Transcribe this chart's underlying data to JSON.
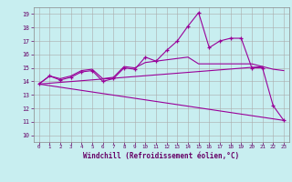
{
  "xlabel": "Windchill (Refroidissement éolien,°C)",
  "bg_color": "#c8eef0",
  "line_color": "#990099",
  "grid_color": "#aaaaaa",
  "x_ticks": [
    0,
    1,
    2,
    3,
    4,
    5,
    6,
    7,
    8,
    9,
    10,
    11,
    12,
    13,
    14,
    15,
    16,
    17,
    18,
    19,
    20,
    21,
    22,
    23
  ],
  "y_ticks": [
    10,
    11,
    12,
    13,
    14,
    15,
    16,
    17,
    18,
    19
  ],
  "xlim": [
    -0.5,
    23.5
  ],
  "ylim": [
    9.5,
    19.5
  ],
  "series1_x": [
    0,
    1,
    2,
    3,
    4,
    5,
    6,
    7,
    8,
    9,
    10,
    11,
    12,
    13,
    14,
    15,
    16,
    17,
    18,
    19,
    20,
    21,
    22,
    23
  ],
  "series1_y": [
    13.8,
    14.4,
    14.1,
    14.3,
    14.7,
    14.8,
    14.0,
    14.2,
    15.0,
    14.9,
    15.8,
    15.5,
    16.3,
    17.0,
    18.1,
    19.1,
    16.5,
    17.0,
    17.2,
    17.2,
    15.0,
    15.0,
    12.2,
    11.1
  ],
  "series2_x": [
    0,
    1,
    2,
    3,
    4,
    5,
    6,
    7,
    8,
    9,
    10,
    11,
    12,
    13,
    14,
    15,
    16,
    17,
    18,
    19,
    20,
    21,
    22,
    23
  ],
  "series2_y": [
    13.8,
    14.4,
    14.2,
    14.4,
    14.8,
    14.9,
    14.2,
    14.3,
    15.1,
    15.0,
    15.4,
    15.5,
    15.6,
    15.7,
    15.8,
    15.3,
    15.3,
    15.3,
    15.3,
    15.3,
    15.3,
    15.1,
    14.9,
    14.8
  ],
  "series3_x": [
    0,
    23
  ],
  "series3_y": [
    13.8,
    11.1
  ],
  "series4_x": [
    0,
    21
  ],
  "series4_y": [
    13.8,
    15.1
  ],
  "font_family": "monospace"
}
